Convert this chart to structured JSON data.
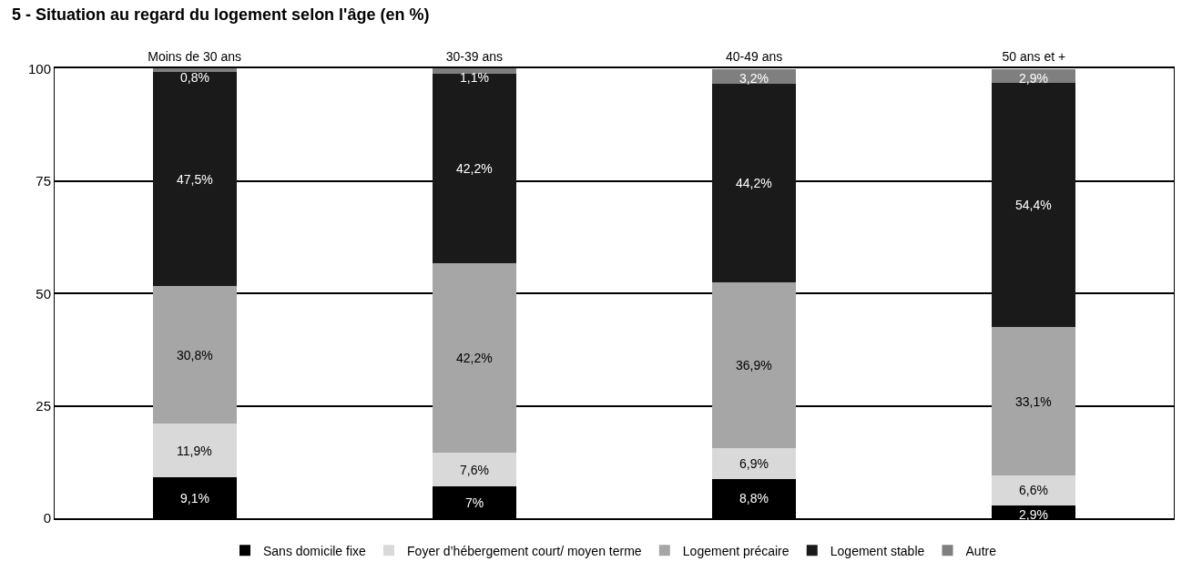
{
  "chart_data": {
    "type": "bar",
    "title": "5 - Situation au regard du logement selon l'âge (en %)",
    "categories": [
      "Moins de 30 ans",
      "30-39 ans",
      "40-49 ans",
      "50 ans et +"
    ],
    "stacked": true,
    "ylim": [
      0,
      100.2
    ],
    "yticks": [
      0,
      25,
      50,
      75,
      100
    ],
    "grid": "y",
    "legend": "bottom",
    "series": [
      {
        "name": "Sans domicile fixe",
        "color": "#000000",
        "values": [
          9.1,
          7,
          8.8,
          2.9
        ],
        "value_labels": [
          "9,1%",
          "7%",
          "8,8%",
          "2,9%"
        ]
      },
      {
        "name": "Foyer d’hébergement court/ moyen terme",
        "color": "#d9d9d9",
        "values": [
          11.9,
          7.6,
          6.9,
          6.6
        ],
        "value_labels": [
          "11,9%",
          "7,6%",
          "6,9%",
          "6,6%"
        ]
      },
      {
        "name": "Logement précaire",
        "color": "#a6a6a6",
        "values": [
          30.8,
          42.2,
          36.9,
          33.1
        ],
        "value_labels": [
          "30,8%",
          "42,2%",
          "36,9%",
          "33,1%"
        ]
      },
      {
        "name": "Logement stable",
        "color": "#1a1a1a",
        "values": [
          47.5,
          42.2,
          44.2,
          54.4
        ],
        "value_labels": [
          "47,5%",
          "42,2%",
          "44,2%",
          "54,4%"
        ]
      },
      {
        "name": "Autre",
        "color": "#7f7f7f",
        "values": [
          0.8,
          1.1,
          3.2,
          2.9
        ],
        "value_labels": [
          "0,8%",
          "1,1%",
          "3,2%",
          "2,9%"
        ]
      }
    ]
  }
}
